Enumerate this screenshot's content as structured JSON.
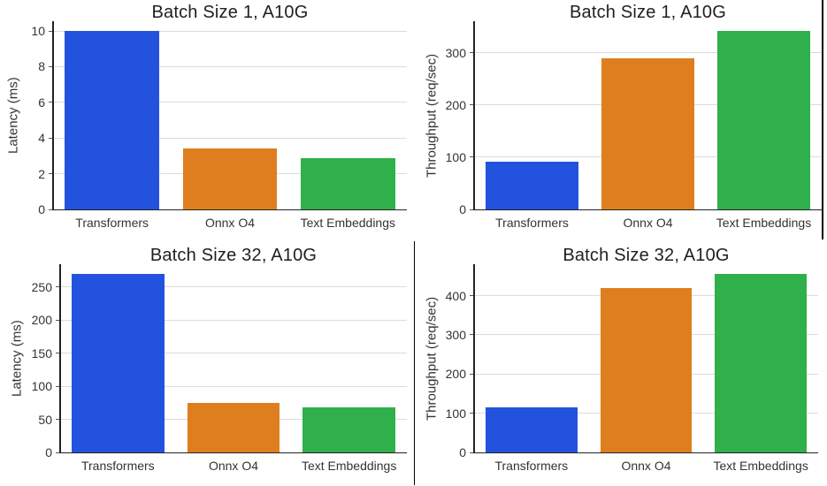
{
  "figure": {
    "background": "#ffffff",
    "title_color": "#1f1f1f",
    "text_color": "#333333",
    "grid_color": "#dcdcdc",
    "spine_color": "#222222",
    "tick_color": "#555555",
    "divider_color": "#000000",
    "bar_colors": [
      "#2353de",
      "#df7e1e",
      "#2fb04a"
    ],
    "bar_color_names": [
      "blue",
      "orange",
      "green"
    ]
  },
  "chart_data": [
    {
      "id": "latency-batch-1",
      "type": "bar",
      "title": "Batch Size 1, A10G",
      "ylabel": "Latency (ms)",
      "xlabel": "",
      "grid": true,
      "legend": "none",
      "categories": [
        "Transformers",
        "Onnx O4",
        "Text Embeddings"
      ],
      "values": [
        10.0,
        3.4,
        2.85
      ],
      "yticks": [
        0,
        2,
        4,
        6,
        8,
        10
      ],
      "ylim": [
        0,
        10.55
      ]
    },
    {
      "id": "throughput-batch-1",
      "type": "bar",
      "title": "Batch Size 1, A10G",
      "ylabel": "Throughput (req/sec)",
      "xlabel": "",
      "grid": true,
      "legend": "none",
      "categories": [
        "Transformers",
        "Onnx O4",
        "Text Embeddings"
      ],
      "values": [
        92,
        289,
        341
      ],
      "yticks": [
        0,
        100,
        200,
        300
      ],
      "ylim": [
        0,
        360
      ]
    },
    {
      "id": "latency-batch-32",
      "type": "bar",
      "title": "Batch Size 32, A10G",
      "ylabel": "Latency (ms)",
      "xlabel": "",
      "grid": true,
      "legend": "none",
      "categories": [
        "Transformers",
        "Onnx O4",
        "Text Embeddings"
      ],
      "values": [
        270,
        75,
        68
      ],
      "yticks": [
        0,
        50,
        100,
        150,
        200,
        250
      ],
      "ylim": [
        0,
        284
      ]
    },
    {
      "id": "throughput-batch-32",
      "type": "bar",
      "title": "Batch Size 32, A10G",
      "ylabel": "Throughput (req/sec)",
      "xlabel": "",
      "grid": true,
      "legend": "none",
      "categories": [
        "Transformers",
        "Onnx O4",
        "Text Embeddings"
      ],
      "values": [
        115,
        420,
        456
      ],
      "yticks": [
        0,
        100,
        200,
        300,
        400
      ],
      "ylim": [
        0,
        480
      ]
    }
  ]
}
